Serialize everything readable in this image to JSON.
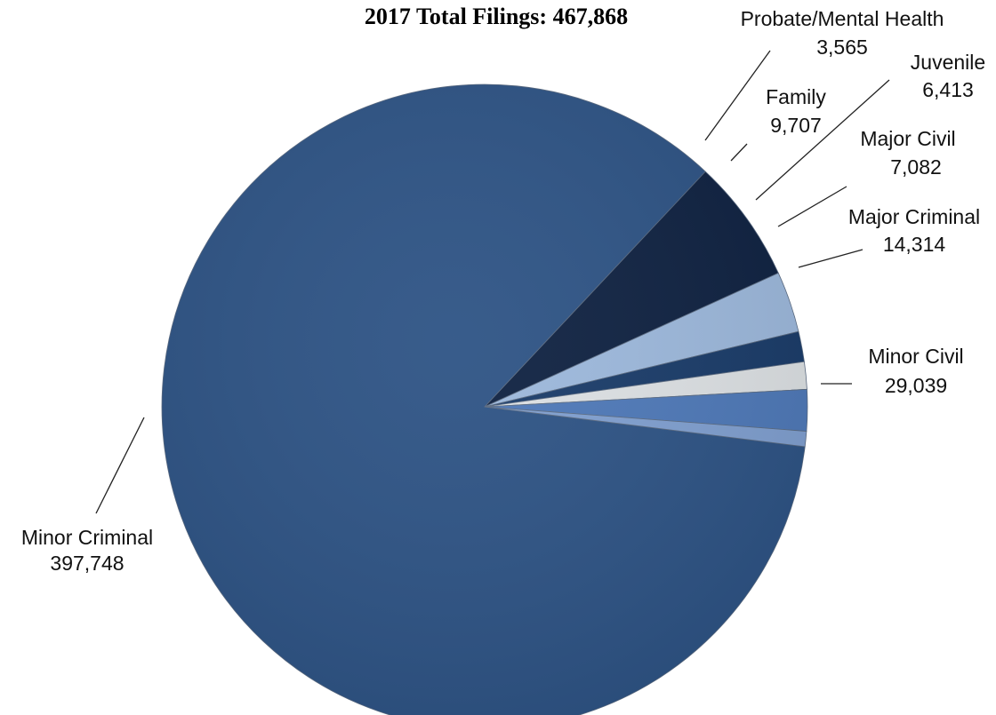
{
  "chart_data": {
    "type": "pie",
    "title": "2017 Total Filings: 467,868",
    "slices": [
      {
        "name": "Minor Criminal",
        "value_label": "397,748",
        "value": 397748,
        "color": "#2c5284"
      },
      {
        "name": "Minor Civil",
        "value_label": "29,039",
        "value": 29039,
        "color": "#0d2040"
      },
      {
        "name": "Major Criminal",
        "value_label": "14,314",
        "value": 14314,
        "color": "#9cb8dc"
      },
      {
        "name": "Major Civil",
        "value_label": "7,082",
        "value": 7082,
        "color": "#183a68"
      },
      {
        "name": "Juvenile",
        "value_label": "6,413",
        "value": 6413,
        "color": "#dde1e4"
      },
      {
        "name": "Family",
        "value_label": "9,707",
        "value": 9707,
        "color": "#4d78b8"
      },
      {
        "name": "Probate/Mental Health",
        "value_label": "3,565",
        "value": 3565,
        "color": "#7f9fd0"
      }
    ]
  }
}
